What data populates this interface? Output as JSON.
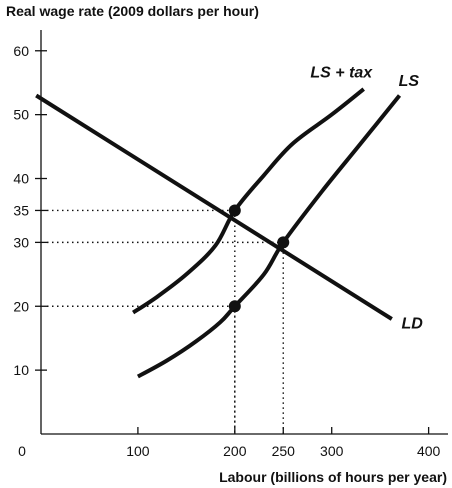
{
  "chart_data": {
    "type": "line",
    "title": "",
    "ylabel": "Real wage rate (2009 dollars per hour)",
    "xlabel": "Labour (billions of hours per year)",
    "origin_label": "0",
    "xlim": [
      0,
      420
    ],
    "ylim": [
      0,
      62
    ],
    "x_ticks": [
      100,
      200,
      250,
      300,
      400
    ],
    "y_ticks": [
      10,
      20,
      30,
      35,
      40,
      50,
      60
    ],
    "series": [
      {
        "name": "LD",
        "points": [
          [
            -5,
            53
          ],
          [
            362,
            18
          ]
        ]
      },
      {
        "name": "LS + tax",
        "points": [
          [
            95,
            19
          ],
          [
            120,
            21.5
          ],
          [
            150,
            25
          ],
          [
            180,
            29.5
          ],
          [
            200,
            35
          ],
          [
            230,
            40.5
          ],
          [
            260,
            45.5
          ],
          [
            300,
            50
          ],
          [
            333,
            54
          ]
        ]
      },
      {
        "name": "LS",
        "points": [
          [
            100,
            9
          ],
          [
            130,
            11.5
          ],
          [
            160,
            14.5
          ],
          [
            185,
            17.5
          ],
          [
            200,
            20
          ],
          [
            230,
            25
          ],
          [
            250,
            30
          ],
          [
            290,
            38
          ],
          [
            330,
            45.5
          ],
          [
            370,
            53
          ]
        ]
      }
    ],
    "labels": [
      {
        "text": "LS + tax",
        "x": 278,
        "y": 55.8,
        "anchor": "start"
      },
      {
        "text": "LS",
        "x": 369,
        "y": 54.5,
        "anchor": "start"
      },
      {
        "text": "LD",
        "x": 372,
        "y": 16.5,
        "anchor": "start"
      }
    ],
    "points": [
      {
        "x": 200,
        "y": 35
      },
      {
        "x": 250,
        "y": 30
      },
      {
        "x": 200,
        "y": 20
      }
    ],
    "guides": [
      {
        "x": 200,
        "y": 35
      },
      {
        "x": 250,
        "y": 30
      },
      {
        "x": 200,
        "y": 20
      }
    ]
  }
}
